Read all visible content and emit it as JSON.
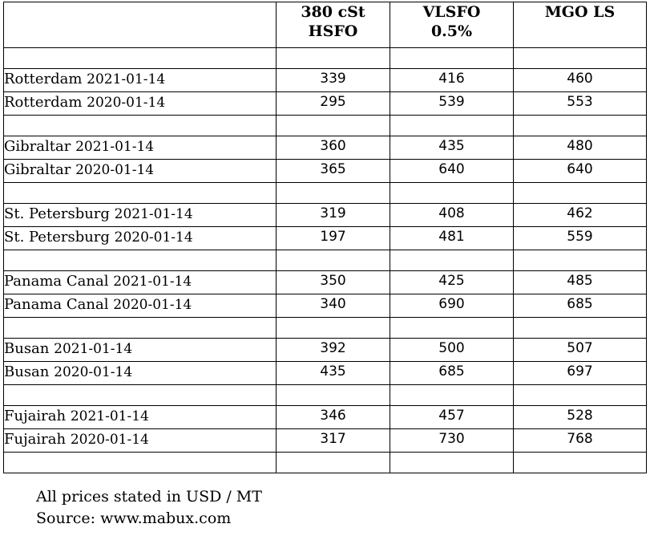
{
  "table": {
    "headers": [
      "",
      "380 cSt HSFO",
      "VLSFO 0.5%",
      "MGO LS"
    ],
    "groups": [
      {
        "rows": [
          {
            "port": "Rotterdam",
            "date": "2021-01-14",
            "hsfo": "339",
            "vlsfo": "416",
            "mgo": "460"
          },
          {
            "port": "Rotterdam",
            "date": "2020-01-14",
            "hsfo": "295",
            "vlsfo": "539",
            "mgo": "553"
          }
        ]
      },
      {
        "rows": [
          {
            "port": "Gibraltar",
            "date": "2021-01-14",
            "hsfo": "360",
            "vlsfo": "435",
            "mgo": "480"
          },
          {
            "port": "Gibraltar",
            "date": "2020-01-14",
            "hsfo": "365",
            "vlsfo": "640",
            "mgo": "640"
          }
        ]
      },
      {
        "rows": [
          {
            "port": "St. Petersburg",
            "date": "2021-01-14",
            "hsfo": "319",
            "vlsfo": "408",
            "mgo": "462"
          },
          {
            "port": "St. Petersburg",
            "date": "2020-01-14",
            "hsfo": "197",
            "vlsfo": "481",
            "mgo": "559"
          }
        ]
      },
      {
        "rows": [
          {
            "port": "Panama Canal",
            "date": "2021-01-14",
            "hsfo": "350",
            "vlsfo": "425",
            "mgo": "485"
          },
          {
            "port": "Panama Canal",
            "date": "2020-01-14",
            "hsfo": "340",
            "vlsfo": "690",
            "mgo": "685"
          }
        ]
      },
      {
        "rows": [
          {
            "port": "Busan",
            "date": "2021-01-14",
            "hsfo": "392",
            "vlsfo": "500",
            "mgo": "507"
          },
          {
            "port": "Busan",
            "date": "2020-01-14",
            "hsfo": "435",
            "vlsfo": "685",
            "mgo": "697"
          }
        ]
      },
      {
        "rows": [
          {
            "port": "Fujairah",
            "date": "2021-01-14",
            "hsfo": "346",
            "vlsfo": "457",
            "mgo": "528"
          },
          {
            "port": "Fujairah",
            "date": "2020-01-14",
            "hsfo": "317",
            "vlsfo": "730",
            "mgo": "768"
          }
        ]
      }
    ]
  },
  "footer": {
    "note": "All prices stated in USD / MT",
    "source": "Source: www.mabux.com"
  }
}
